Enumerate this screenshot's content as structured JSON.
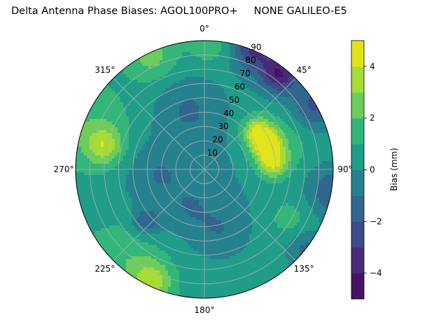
{
  "chart_data": {
    "type": "contour",
    "projection": "polar",
    "title": "Delta Antenna Phase Biases: AGOL100PRO+     NONE GALILEO-E5",
    "angular_axis": {
      "direction": "clockwise",
      "zero": "north",
      "tick_labels": [
        "0°",
        "45°",
        "90°",
        "135°",
        "180°",
        "225°",
        "270°",
        "315°"
      ],
      "ticks": [
        0,
        45,
        90,
        135,
        180,
        225,
        270,
        315
      ]
    },
    "radial_axis": {
      "range": [
        0,
        90
      ],
      "ticks": [
        10,
        20,
        30,
        40,
        50,
        60,
        70,
        80,
        90
      ],
      "tick_labels": [
        "10",
        "20",
        "30",
        "40",
        "50",
        "60",
        "70",
        "80",
        "90"
      ],
      "label_angle": 22.5
    },
    "grid": true,
    "levels": [
      -5,
      -4,
      -3,
      -2,
      -1,
      0,
      1,
      2,
      3,
      4,
      5
    ],
    "level_colors": [
      "#471365",
      "#482a79",
      "#3e4a89",
      "#31668e",
      "#26818e",
      "#1f9d89",
      "#33b67a",
      "#6ccd5a",
      "#a7db35",
      "#e1e419"
    ],
    "colorbar": {
      "label": "Bias (mm)",
      "ticks": [
        -4,
        -2,
        0,
        2,
        4
      ],
      "tick_labels": [
        "−4",
        "−2",
        "0",
        "2",
        "4"
      ],
      "range": [
        -5,
        5
      ],
      "placement": "right"
    },
    "background_by_zenith": [
      {
        "zenith": 0,
        "value": -0.5
      },
      {
        "zenith": 90,
        "value": 0.6
      }
    ],
    "features": [
      {
        "az": 55,
        "zen": 45,
        "value": 3.5,
        "extent_deg": 7
      },
      {
        "az": 70,
        "zen": 47,
        "value": 3.8,
        "extent_deg": 7
      },
      {
        "az": 85,
        "zen": 48,
        "value": 3.0,
        "extent_deg": 7
      },
      {
        "az": 70,
        "zen": 52,
        "value": 1.5,
        "extent_deg": 18
      },
      {
        "az": 38,
        "zen": 85,
        "value": -4.5,
        "extent_deg": 10
      },
      {
        "az": 22,
        "zen": 90,
        "value": -3.5,
        "extent_deg": 10
      },
      {
        "az": 60,
        "zen": 90,
        "value": -3.0,
        "extent_deg": 12
      },
      {
        "az": 100,
        "zen": 92,
        "value": -2.5,
        "extent_deg": 14
      },
      {
        "az": 128,
        "zen": 90,
        "value": -2.0,
        "extent_deg": 10
      },
      {
        "az": 283,
        "zen": 72,
        "value": 2.5,
        "extent_deg": 9
      },
      {
        "az": 290,
        "zen": 80,
        "value": 1.4,
        "extent_deg": 20
      },
      {
        "az": 335,
        "zen": 86,
        "value": 1.8,
        "extent_deg": 12
      },
      {
        "az": 205,
        "zen": 86,
        "value": 2.8,
        "extent_deg": 10
      },
      {
        "az": 222,
        "zen": 80,
        "value": 1.3,
        "extent_deg": 18
      },
      {
        "az": 228,
        "zen": 55,
        "value": -2.2,
        "extent_deg": 7
      },
      {
        "az": 345,
        "zen": 45,
        "value": -1.2,
        "extent_deg": 15
      },
      {
        "az": 265,
        "zen": 35,
        "value": -1.0,
        "extent_deg": 15
      },
      {
        "az": 165,
        "zen": 45,
        "value": -1.0,
        "extent_deg": 12
      },
      {
        "az": 200,
        "zen": 30,
        "value": -0.8,
        "extent_deg": 12
      },
      {
        "az": 2,
        "zen": 88,
        "value": 1.2,
        "extent_deg": 10
      },
      {
        "az": 120,
        "zen": 70,
        "value": 1.2,
        "extent_deg": 12
      }
    ]
  }
}
